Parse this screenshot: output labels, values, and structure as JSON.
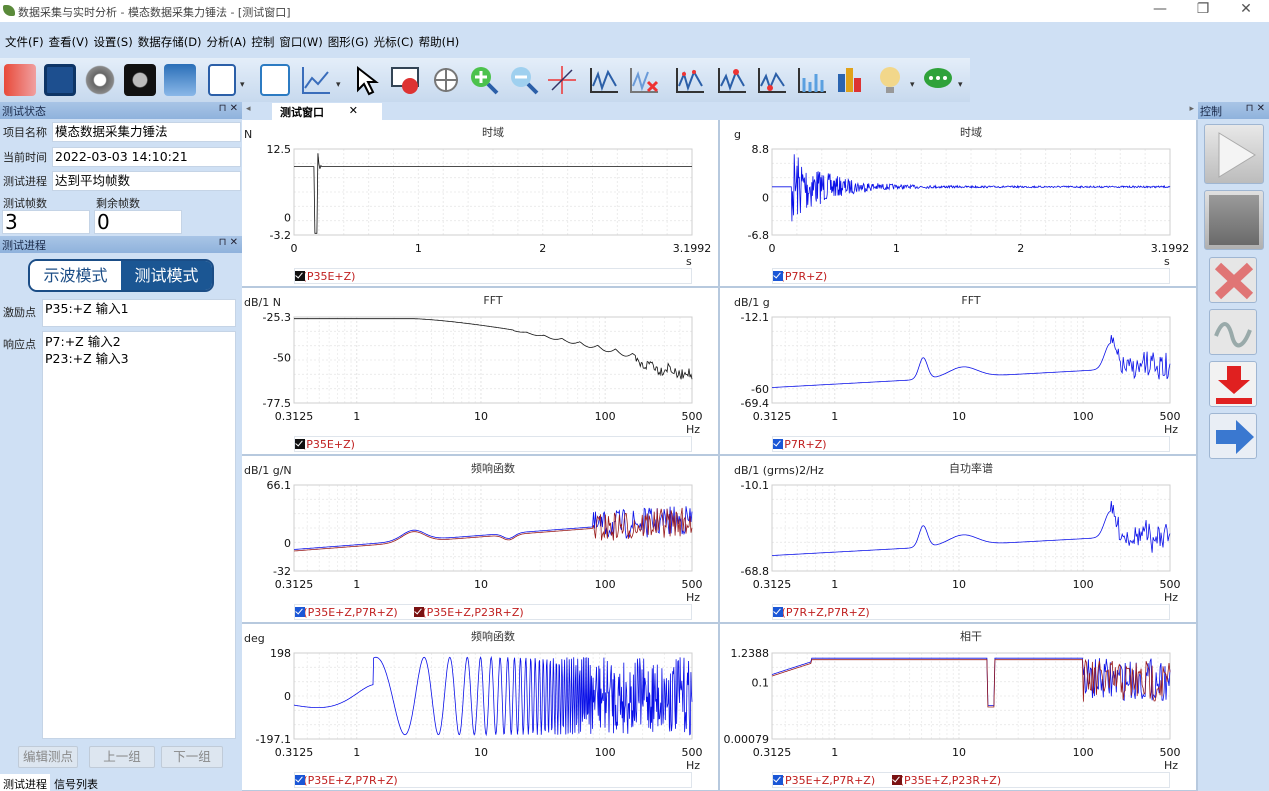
{
  "window": {
    "title": "数据采集与实时分析 - 模态数据采集力锤法 - [测试窗口]"
  },
  "menu": [
    "文件(F)",
    "查看(V)",
    "设置(S)",
    "数据存储(D)",
    "分析(A)",
    "控制",
    "窗口(W)",
    "图形(G)",
    "光标(C)",
    "帮助(H)"
  ],
  "left": {
    "status_header": "测试状态",
    "project_label": "项目名称",
    "project_value": "模态数据采集力锤法",
    "time_label": "当前时间",
    "time_value": "2022-03-03 14:10:21",
    "progress_label": "测试进程",
    "progress_value": "达到平均帧数",
    "frames_label": "测试帧数",
    "frames_value": "3",
    "remain_label": "剩余帧数",
    "remain_value": "0",
    "progress_header": "测试进程",
    "mode_scope": "示波模式",
    "mode_test": "测试模式",
    "excite_label": "激励点",
    "excite_value": "P35:+Z    输入1",
    "response_label": "响应点",
    "response_1": "P7:+Z    输入2",
    "response_2": "P23:+Z    输入3",
    "btn_edit": "编辑测点",
    "btn_prev": "上一组",
    "btn_next": "下一组",
    "tab_progress": "测试进程",
    "tab_signals": "信号列表"
  },
  "doc_tab": "测试窗口",
  "right": {
    "header": "控制"
  },
  "colors": {
    "accent": "#1b5693",
    "panel": "#cfe0f4",
    "series_blue": "#0a10e8",
    "series_black": "#111111",
    "series_red": "#9a1c1c"
  },
  "icons": [
    "back-icon",
    "save-icon",
    "settings-gear-icon",
    "film-reel-icon",
    "signal-icon",
    "document-icon",
    "add-window-icon",
    "line-chart-icon",
    "pointer-icon",
    "no-cursor-icon",
    "pan-icon",
    "zoom-in-icon",
    "zoom-out-icon",
    "crosshair-icon",
    "peak-marker-icon",
    "delete-marker-icon",
    "multi-marker-icon",
    "harmonic-marker-icon",
    "peak-pick-icon",
    "bar-spectrum-icon",
    "3d-bar-icon",
    "lightbulb-icon",
    "comment-icon"
  ],
  "plots": [
    {
      "id": "p1",
      "type": "line",
      "title": "时域",
      "yunit": "N",
      "xunit": "s",
      "xscale": "linear",
      "xlim": [
        0,
        3.1992
      ],
      "ylim": [
        -3.2,
        12.5
      ],
      "yticks": [
        "12.5",
        "0",
        "-3.2"
      ],
      "ytickvals": [
        12.5,
        0,
        -3.2
      ],
      "xticks": [
        "0",
        "1",
        "2",
        "3.1992"
      ],
      "xtickvals": [
        0,
        1,
        2,
        3.1992
      ],
      "kind": "impulse",
      "legend": [
        {
          "label": "X(P35E+Z)",
          "color": "#111111"
        }
      ]
    },
    {
      "id": "p2",
      "type": "line",
      "title": "时域",
      "yunit": "g",
      "xunit": "s",
      "xscale": "linear",
      "xlim": [
        0,
        3.1992
      ],
      "ylim": [
        -6.8,
        8.8
      ],
      "yticks": [
        "8.8",
        "0",
        "-6.8"
      ],
      "ytickvals": [
        8.8,
        0,
        -6.8
      ],
      "xticks": [
        "0",
        "1",
        "2",
        "3.1992"
      ],
      "xtickvals": [
        0,
        1,
        2,
        3.1992
      ],
      "kind": "decay",
      "legend": [
        {
          "label": "X(P7R+Z)",
          "color": "#0a10e8"
        }
      ]
    },
    {
      "id": "p3",
      "type": "line",
      "title": "FFT",
      "yunit": "dB/1 N",
      "xunit": "Hz",
      "xscale": "log",
      "xlim": [
        0.3125,
        500
      ],
      "ylim": [
        -77.5,
        -25.3
      ],
      "yticks": [
        "-25.3",
        "-50",
        "-77.5"
      ],
      "ytickvals": [
        -25.3,
        -50,
        -77.5
      ],
      "xticks": [
        "0.3125",
        "1",
        "10",
        "100",
        "500"
      ],
      "xtickvals": [
        0.3125,
        1,
        10,
        100,
        500
      ],
      "kind": "fftforce",
      "legend": [
        {
          "label": "S(P35E+Z)",
          "color": "#111111"
        }
      ]
    },
    {
      "id": "p4",
      "type": "line",
      "title": "FFT",
      "yunit": "dB/1 g",
      "xunit": "Hz",
      "xscale": "log",
      "xlim": [
        0.3125,
        500
      ],
      "ylim": [
        -69.4,
        -12.1
      ],
      "yticks": [
        "-12.1",
        "-60",
        "-69.4"
      ],
      "ytickvals": [
        -12.1,
        -60,
        -69.4
      ],
      "xticks": [
        "0.3125",
        "1",
        "10",
        "100",
        "500"
      ],
      "xtickvals": [
        0.3125,
        1,
        10,
        100,
        500
      ],
      "kind": "resp",
      "legend": [
        {
          "label": "S(P7R+Z)",
          "color": "#0a10e8"
        }
      ]
    },
    {
      "id": "p5",
      "type": "line",
      "title": "频响函数",
      "yunit": "dB/1 g/N",
      "xunit": "Hz",
      "xscale": "log",
      "xlim": [
        0.3125,
        500
      ],
      "ylim": [
        -32,
        66.1
      ],
      "yticks": [
        "66.1",
        "0",
        "-32"
      ],
      "ytickvals": [
        66.1,
        0,
        -32
      ],
      "xticks": [
        "0.3125",
        "1",
        "10",
        "100",
        "500"
      ],
      "xtickvals": [
        0.3125,
        1,
        10,
        100,
        500
      ],
      "kind": "frf",
      "legend": [
        {
          "label": "H(P35E+Z,P7R+Z)",
          "color": "#0a10e8"
        },
        {
          "label": "H(P35E+Z,P23R+Z)",
          "color": "#9a1c1c"
        }
      ]
    },
    {
      "id": "p6",
      "type": "line",
      "title": "自功率谱",
      "yunit": "dB/1 (grms)2/Hz",
      "xunit": "Hz",
      "xscale": "log",
      "xlim": [
        0.3125,
        500
      ],
      "ylim": [
        -68.8,
        -10.1
      ],
      "yticks": [
        "-10.1",
        "-68.8"
      ],
      "ytickvals": [
        -10.1,
        -68.8
      ],
      "xticks": [
        "0.3125",
        "1",
        "10",
        "100",
        "500"
      ],
      "xtickvals": [
        0.3125,
        1,
        10,
        100,
        500
      ],
      "kind": "resp",
      "legend": [
        {
          "label": "G(P7R+Z,P7R+Z)",
          "color": "#0a10e8"
        }
      ]
    },
    {
      "id": "p7",
      "type": "line",
      "title": "频响函数",
      "yunit": "deg",
      "xunit": "Hz",
      "xscale": "log",
      "xlim": [
        0.3125,
        500
      ],
      "ylim": [
        -197.1,
        198
      ],
      "yticks": [
        "198",
        "0",
        "-197.1"
      ],
      "ytickvals": [
        198,
        0,
        -197.1
      ],
      "xticks": [
        "0.3125",
        "1",
        "10",
        "100",
        "500"
      ],
      "xtickvals": [
        0.3125,
        1,
        10,
        100,
        500
      ],
      "kind": "phase",
      "legend": [
        {
          "label": "H(P35E+Z,P7R+Z)",
          "color": "#0a10e8"
        }
      ]
    },
    {
      "id": "p8",
      "type": "line",
      "title": "相干",
      "yunit": "",
      "xunit": "Hz",
      "xscale": "log",
      "xlim": [
        0.3125,
        500
      ],
      "ylim": [
        0.00079,
        1.2388
      ],
      "yticks": [
        "1.2388",
        "0.1",
        "0.00079"
      ],
      "ytickvals": [
        1.2388,
        0.1,
        0.00079
      ],
      "xticks": [
        "0.3125",
        "1",
        "10",
        "100",
        "500"
      ],
      "xtickvals": [
        0.3125,
        1,
        10,
        100,
        500
      ],
      "kind": "coh",
      "legend": [
        {
          "label": "C(P35E+Z,P7R+Z)",
          "color": "#0a10e8"
        },
        {
          "label": "C(P35E+Z,P23R+Z)",
          "color": "#9a1c1c"
        }
      ]
    }
  ]
}
